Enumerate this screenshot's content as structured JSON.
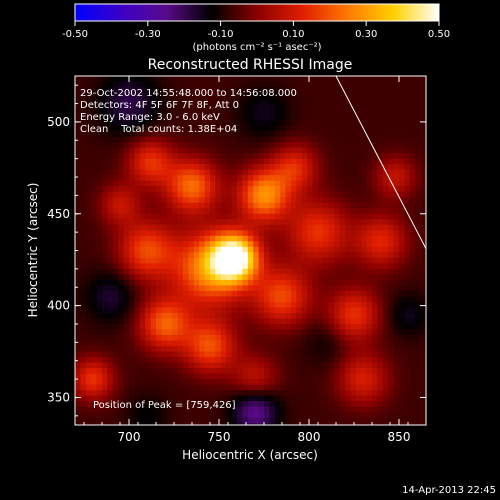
{
  "chart_data": {
    "type": "heatmap",
    "title": "Reconstructed RHESSI Image",
    "xlabel": "Heliocentric X (arcsec)",
    "ylabel": "Heliocentric Y (arcsec)",
    "xlim": [
      670,
      865
    ],
    "ylim": [
      335,
      525
    ],
    "xticks": [
      700,
      750,
      800,
      850
    ],
    "yticks": [
      350,
      400,
      450,
      500
    ],
    "colorbar": {
      "range": [
        -0.5,
        0.5
      ],
      "ticks": [
        "-0.50",
        "-0.30",
        "-0.10",
        "0.10",
        "0.30",
        "0.50"
      ],
      "units_label": "(photons cm⁻² s⁻¹ asec⁻²)",
      "colors": [
        "#0000ff",
        "#3a00c8",
        "#5a0a8a",
        "#000000",
        "#8a0000",
        "#e01e00",
        "#ff7a00",
        "#ffd000",
        "#ffffff"
      ]
    },
    "annotations": [
      "29-Oct-2002 14:55:48.000 to 14:56:08.000",
      "Detectors: 4F 5F 6F 7F 8F, Att 0",
      "Energy Range: 3.0 - 6.0 keV",
      "Clean    Total counts: 1.38E+04"
    ],
    "peak_label": "Position of Peak = [759,426]",
    "peak": [
      759,
      426
    ],
    "intensity_sources": [
      {
        "x": 759,
        "y": 426,
        "amp": 0.55,
        "sigma": 9
      },
      {
        "x": 745,
        "y": 420,
        "amp": 0.35,
        "sigma": 14
      },
      {
        "x": 775,
        "y": 460,
        "amp": 0.35,
        "sigma": 10
      },
      {
        "x": 735,
        "y": 465,
        "amp": 0.3,
        "sigma": 10
      },
      {
        "x": 712,
        "y": 478,
        "amp": 0.22,
        "sigma": 9
      },
      {
        "x": 710,
        "y": 430,
        "amp": 0.25,
        "sigma": 11
      },
      {
        "x": 720,
        "y": 390,
        "amp": 0.28,
        "sigma": 10
      },
      {
        "x": 745,
        "y": 378,
        "amp": 0.26,
        "sigma": 10
      },
      {
        "x": 805,
        "y": 440,
        "amp": 0.22,
        "sigma": 12
      },
      {
        "x": 792,
        "y": 475,
        "amp": 0.2,
        "sigma": 9
      },
      {
        "x": 785,
        "y": 405,
        "amp": 0.25,
        "sigma": 11
      },
      {
        "x": 825,
        "y": 395,
        "amp": 0.22,
        "sigma": 10
      },
      {
        "x": 840,
        "y": 435,
        "amp": 0.2,
        "sigma": 10
      },
      {
        "x": 830,
        "y": 360,
        "amp": 0.18,
        "sigma": 10
      },
      {
        "x": 695,
        "y": 455,
        "amp": 0.15,
        "sigma": 8
      },
      {
        "x": 680,
        "y": 360,
        "amp": 0.22,
        "sigma": 8
      },
      {
        "x": 770,
        "y": 360,
        "amp": 0.15,
        "sigma": 9
      },
      {
        "x": 848,
        "y": 470,
        "amp": 0.15,
        "sigma": 8
      },
      {
        "x": 700,
        "y": 510,
        "amp": -0.12,
        "sigma": 12
      },
      {
        "x": 775,
        "y": 505,
        "amp": -0.08,
        "sigma": 10
      },
      {
        "x": 690,
        "y": 405,
        "amp": -0.1,
        "sigma": 10
      },
      {
        "x": 810,
        "y": 380,
        "amp": -0.05,
        "sigma": 9
      },
      {
        "x": 770,
        "y": 343,
        "amp": -0.2,
        "sigma": 9
      },
      {
        "x": 855,
        "y": 395,
        "amp": -0.08,
        "sigma": 8
      },
      {
        "x": 710,
        "y": 340,
        "amp": -0.06,
        "sigma": 8
      }
    ],
    "limb_line": [
      [
        815,
        525
      ],
      [
        865,
        431
      ]
    ]
  },
  "footer": {
    "timestamp": "14-Apr-2013 22:45"
  }
}
